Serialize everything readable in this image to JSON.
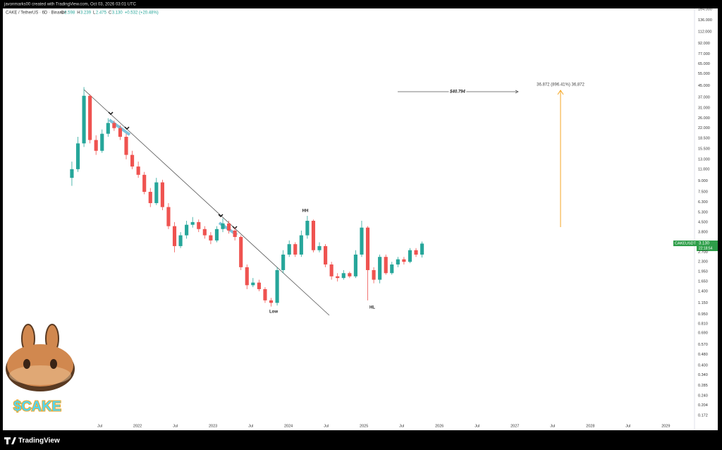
{
  "header": "javonmarks00 created with TradingView.com, Oct 03, 2026 03:01 UTC",
  "chart_data": {
    "type": "candlestick",
    "title": "CAKE / TetherUS · 6D · Binance",
    "legend_values": [
      "O",
      "2.598",
      "H",
      "3.239",
      "L",
      "2.475",
      "C",
      "3.130",
      "+0.532 (+20.48%)"
    ],
    "log_scale": true,
    "grid": false,
    "up_color": "#26a69a",
    "down_color": "#ef5350",
    "x": [
      2021.13,
      2021.21,
      2021.29,
      2021.37,
      2021.45,
      2021.53,
      2021.61,
      2021.69,
      2021.77,
      2021.85,
      2021.93,
      2022.01,
      2022.09,
      2022.17,
      2022.25,
      2022.33,
      2022.41,
      2022.49,
      2022.57,
      2022.65,
      2022.73,
      2022.81,
      2022.89,
      2022.97,
      2023.05,
      2023.13,
      2023.21,
      2023.29,
      2023.37,
      2023.45,
      2023.53,
      2023.61,
      2023.69,
      2023.77,
      2023.85,
      2023.93,
      2024.01,
      2024.09,
      2024.17,
      2024.25,
      2024.33,
      2024.41,
      2024.49,
      2024.57,
      2024.65,
      2024.73,
      2024.81,
      2024.89,
      2024.97,
      2025.05,
      2025.13,
      2025.21,
      2025.29,
      2025.37,
      2025.45,
      2025.53,
      2025.61,
      2025.69,
      2025.77
    ],
    "open": [
      9.5,
      11,
      17,
      38,
      18,
      15,
      20,
      24,
      22,
      19,
      14,
      11.5,
      10,
      7.5,
      6.2,
      8.8,
      5.8,
      4.2,
      3.0,
      3.6,
      4.3,
      4.5,
      4.0,
      3.6,
      3.3,
      4.0,
      4.4,
      3.9,
      3.5,
      2.1,
      1.55,
      1.62,
      1.45,
      1.2,
      1.15,
      2.0,
      2.6,
      3.1,
      2.6,
      3.6,
      4.6,
      2.8,
      3.0,
      2.2,
      1.8,
      1.75,
      1.9,
      1.8,
      2.6,
      4.1,
      2.0,
      1.7,
      2.5,
      1.9,
      2.2,
      2.4,
      2.3,
      2.8,
      2.598
    ],
    "high": [
      12.5,
      19,
      44,
      39,
      19.5,
      21.5,
      26,
      25,
      23,
      20,
      15,
      12.5,
      10.5,
      8,
      9.5,
      9.2,
      6.2,
      4.5,
      3.8,
      4.6,
      4.9,
      4.7,
      4.2,
      3.8,
      4.2,
      4.8,
      4.6,
      4.1,
      3.6,
      2.2,
      1.75,
      1.7,
      1.5,
      1.25,
      2.1,
      2.8,
      3.3,
      3.2,
      3.9,
      5.0,
      4.7,
      3.2,
      3.1,
      2.3,
      1.9,
      2.0,
      1.95,
      2.8,
      4.6,
      4.2,
      2.1,
      2.6,
      2.6,
      2.3,
      2.5,
      2.5,
      2.9,
      2.9,
      3.239
    ],
    "low": [
      8.3,
      10.5,
      16,
      17,
      14,
      14.5,
      19,
      21,
      18,
      13,
      11,
      9.5,
      7.2,
      5.8,
      6,
      5.5,
      4.0,
      2.7,
      2.9,
      3.4,
      4.1,
      3.8,
      3.4,
      3.1,
      3.2,
      3.8,
      3.7,
      3.3,
      2.0,
      1.45,
      1.5,
      1.4,
      1.15,
      1.08,
      1.1,
      1.9,
      2.5,
      2.5,
      2.5,
      3.4,
      2.7,
      2.7,
      2.1,
      1.7,
      1.65,
      1.7,
      1.75,
      1.75,
      2.5,
      1.2,
      1.6,
      1.6,
      1.85,
      1.85,
      2.1,
      2.2,
      2.25,
      2.5,
      2.475
    ],
    "close": [
      11,
      17,
      38,
      18,
      15,
      20,
      24,
      22,
      19,
      14,
      11.5,
      10,
      7.5,
      6.2,
      8.8,
      5.8,
      4.2,
      3.0,
      3.6,
      4.3,
      4.5,
      4.0,
      3.6,
      3.3,
      4.0,
      4.4,
      3.9,
      3.5,
      2.1,
      1.55,
      1.62,
      1.45,
      1.2,
      1.15,
      2.0,
      2.6,
      3.1,
      2.6,
      3.6,
      4.6,
      2.8,
      3.0,
      2.2,
      1.8,
      1.75,
      1.9,
      1.8,
      2.6,
      4.1,
      2.0,
      1.7,
      2.5,
      1.9,
      2.2,
      2.4,
      2.3,
      2.8,
      2.598,
      3.13
    ],
    "xlim": [
      2020.215,
      2029.38
    ],
    "xticks": [
      {
        "value": 2021.5,
        "label": "Jul"
      },
      {
        "value": 2022,
        "label": "2022"
      },
      {
        "value": 2022.5,
        "label": "Jul"
      },
      {
        "value": 2023,
        "label": "2023"
      },
      {
        "value": 2023.5,
        "label": "Jul"
      },
      {
        "value": 2024,
        "label": "2024"
      },
      {
        "value": 2024.5,
        "label": "Jul"
      },
      {
        "value": 2025,
        "label": "2025"
      },
      {
        "value": 2025.5,
        "label": "Jul"
      },
      {
        "value": 2026,
        "label": "2026"
      },
      {
        "value": 2026.5,
        "label": "Jul"
      },
      {
        "value": 2027,
        "label": "2027"
      },
      {
        "value": 2027.5,
        "label": "Jul"
      },
      {
        "value": 2028,
        "label": "2028"
      },
      {
        "value": 2028.5,
        "label": "Jul"
      },
      {
        "value": 2029,
        "label": "2029"
      }
    ],
    "ylim": [
      0.142,
      166
    ],
    "yticks": [
      {
        "value": 164,
        "label": "164.000"
      },
      {
        "value": 136,
        "label": "136.000"
      },
      {
        "value": 112,
        "label": "112.000"
      },
      {
        "value": 92,
        "label": "92.000"
      },
      {
        "value": 77,
        "label": "77.000"
      },
      {
        "value": 65,
        "label": "65.000"
      },
      {
        "value": 55,
        "label": "55.000"
      },
      {
        "value": 45,
        "label": "45.000"
      },
      {
        "value": 37,
        "label": "37.000"
      },
      {
        "value": 31,
        "label": "31.000"
      },
      {
        "value": 26,
        "label": "26.000"
      },
      {
        "value": 22,
        "label": "22.000"
      },
      {
        "value": 18.5,
        "label": "18.500"
      },
      {
        "value": 15.5,
        "label": "15.500"
      },
      {
        "value": 13,
        "label": "13.000"
      },
      {
        "value": 11,
        "label": "11.000"
      },
      {
        "value": 9,
        "label": "9.000"
      },
      {
        "value": 7.5,
        "label": "7.500"
      },
      {
        "value": 6.3,
        "label": "6.300"
      },
      {
        "value": 5.3,
        "label": "5.300"
      },
      {
        "value": 4.5,
        "label": "4.500"
      },
      {
        "value": 3.8,
        "label": "3.800"
      },
      {
        "value": 2.7,
        "label": "2.700"
      },
      {
        "value": 2.3,
        "label": "2.300"
      },
      {
        "value": 1.95,
        "label": "1.950"
      },
      {
        "value": 1.65,
        "label": "1.650"
      },
      {
        "value": 1.4,
        "label": "1.400"
      },
      {
        "value": 1.15,
        "label": "1.150"
      },
      {
        "value": 0.95,
        "label": "0.950"
      },
      {
        "value": 0.81,
        "label": "0.810"
      },
      {
        "value": 0.69,
        "label": "0.690"
      },
      {
        "value": 0.57,
        "label": "0.570"
      },
      {
        "value": 0.48,
        "label": "0.480"
      },
      {
        "value": 0.4,
        "label": "0.400"
      },
      {
        "value": 0.34,
        "label": "0.340"
      },
      {
        "value": 0.285,
        "label": "0.285"
      },
      {
        "value": 0.24,
        "label": "0.240"
      },
      {
        "value": 0.204,
        "label": "0.204"
      },
      {
        "value": 0.172,
        "label": "0.172"
      }
    ],
    "annotations": [
      "HH",
      "Low",
      "HL",
      "$40.794",
      "36.872 (896.41%) 36,872"
    ],
    "price_label": {
      "symbol": "CAKEUSDT",
      "price": "3.130",
      "countdown": "22:18:54"
    }
  },
  "logo_text": "$CAKE",
  "footer": "TradingView"
}
